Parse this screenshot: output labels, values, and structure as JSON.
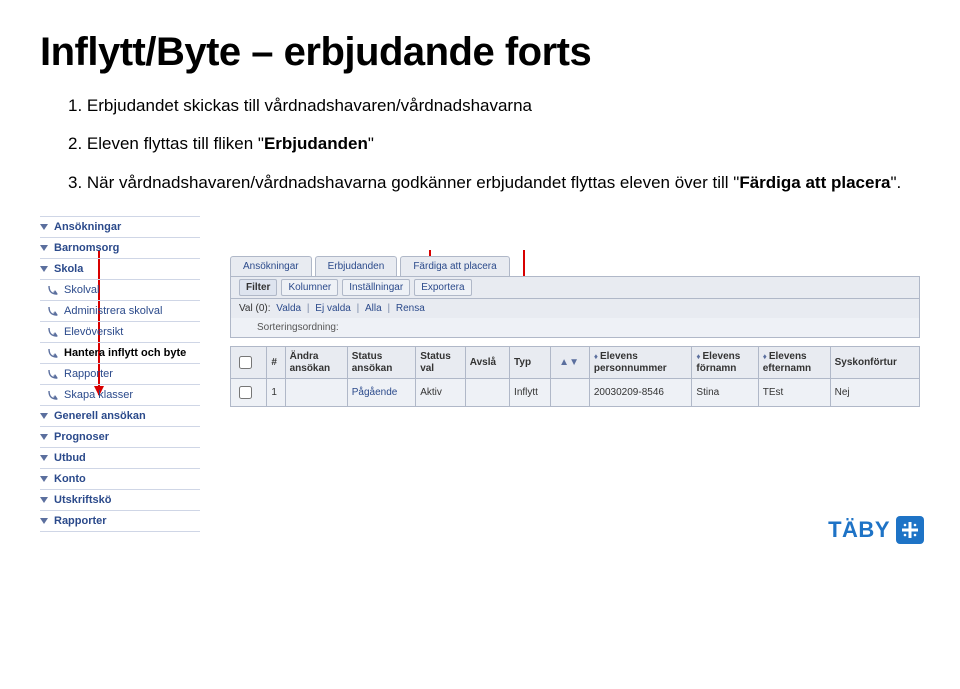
{
  "title": "Inflytt/Byte – erbjudande forts",
  "instructions": {
    "line1_prefix": "1. Erbjudandet skickas till vårdnadshavaren/vårdnadshavarna",
    "line2_prefix": "2. Eleven flyttas till fliken \"",
    "line2_bold": "Erbjudanden",
    "line2_suffix": "\"",
    "line3_prefix": "3. När vårdnadshavaren/vårdnadshavarna godkänner erbjudandet flyttas eleven över till \"",
    "line3_bold": "Färdiga att placera",
    "line3_suffix": "\"."
  },
  "sidebar": {
    "items": [
      {
        "label": "Ansökningar",
        "type": "top",
        "caret": true
      },
      {
        "label": "Barnomsorg",
        "type": "top",
        "caret": true
      },
      {
        "label": "Skola",
        "type": "top",
        "caret": true
      },
      {
        "label": "Skolval",
        "type": "sub"
      },
      {
        "label": "Administrera skolval",
        "type": "sub"
      },
      {
        "label": "Elevöversikt",
        "type": "sub"
      },
      {
        "label": "Hantera inflytt och byte",
        "type": "sub",
        "active": true
      },
      {
        "label": "Rapporter",
        "type": "sub"
      },
      {
        "label": "Skapa klasser",
        "type": "sub"
      },
      {
        "label": "Generell ansökan",
        "type": "top",
        "caret": true
      },
      {
        "label": "Prognoser",
        "type": "top",
        "caret": true
      },
      {
        "label": "Utbud",
        "type": "top",
        "caret": true
      },
      {
        "label": "Konto",
        "type": "top",
        "caret": true
      },
      {
        "label": "Utskriftskö",
        "type": "top",
        "caret": true
      },
      {
        "label": "Rapporter",
        "type": "top",
        "caret": true
      }
    ]
  },
  "tabs": [
    {
      "label": "Ansökningar"
    },
    {
      "label": "Erbjudanden"
    },
    {
      "label": "Färdiga att placera"
    }
  ],
  "toolbar": [
    {
      "label": "Filter",
      "first": true
    },
    {
      "label": "Kolumner"
    },
    {
      "label": "Inställningar"
    },
    {
      "label": "Exportera"
    }
  ],
  "valrow": {
    "prefix": "Val (0): ",
    "links": [
      "Valda",
      "Ej valda",
      "Alla",
      "Rensa"
    ]
  },
  "sortrow": "Sorteringsordning:",
  "table": {
    "headers": [
      "",
      "#",
      "Ändra ansökan",
      "Status ansökan",
      "Status val",
      "Avslå",
      "Typ",
      "",
      "Elevens personnummer",
      "Elevens förnamn",
      "Elevens efternamn",
      "Syskonförtur"
    ],
    "row": {
      "num": "1",
      "andra": "",
      "status_ansokan": "Pågående",
      "status_val": "Aktiv",
      "avsla": "",
      "typ": "Inflytt",
      "pnr": "20030209-8546",
      "fornamn": "Stina",
      "efternamn": "TEst",
      "syskon": "Nej"
    }
  },
  "logo": "TÄBY",
  "colors": {
    "brand": "#1e73c6",
    "arrow": "#d80000",
    "panel_bg": "#e8ebf1",
    "panel_border": "#b0b8c8",
    "link": "#2b4a8b"
  }
}
